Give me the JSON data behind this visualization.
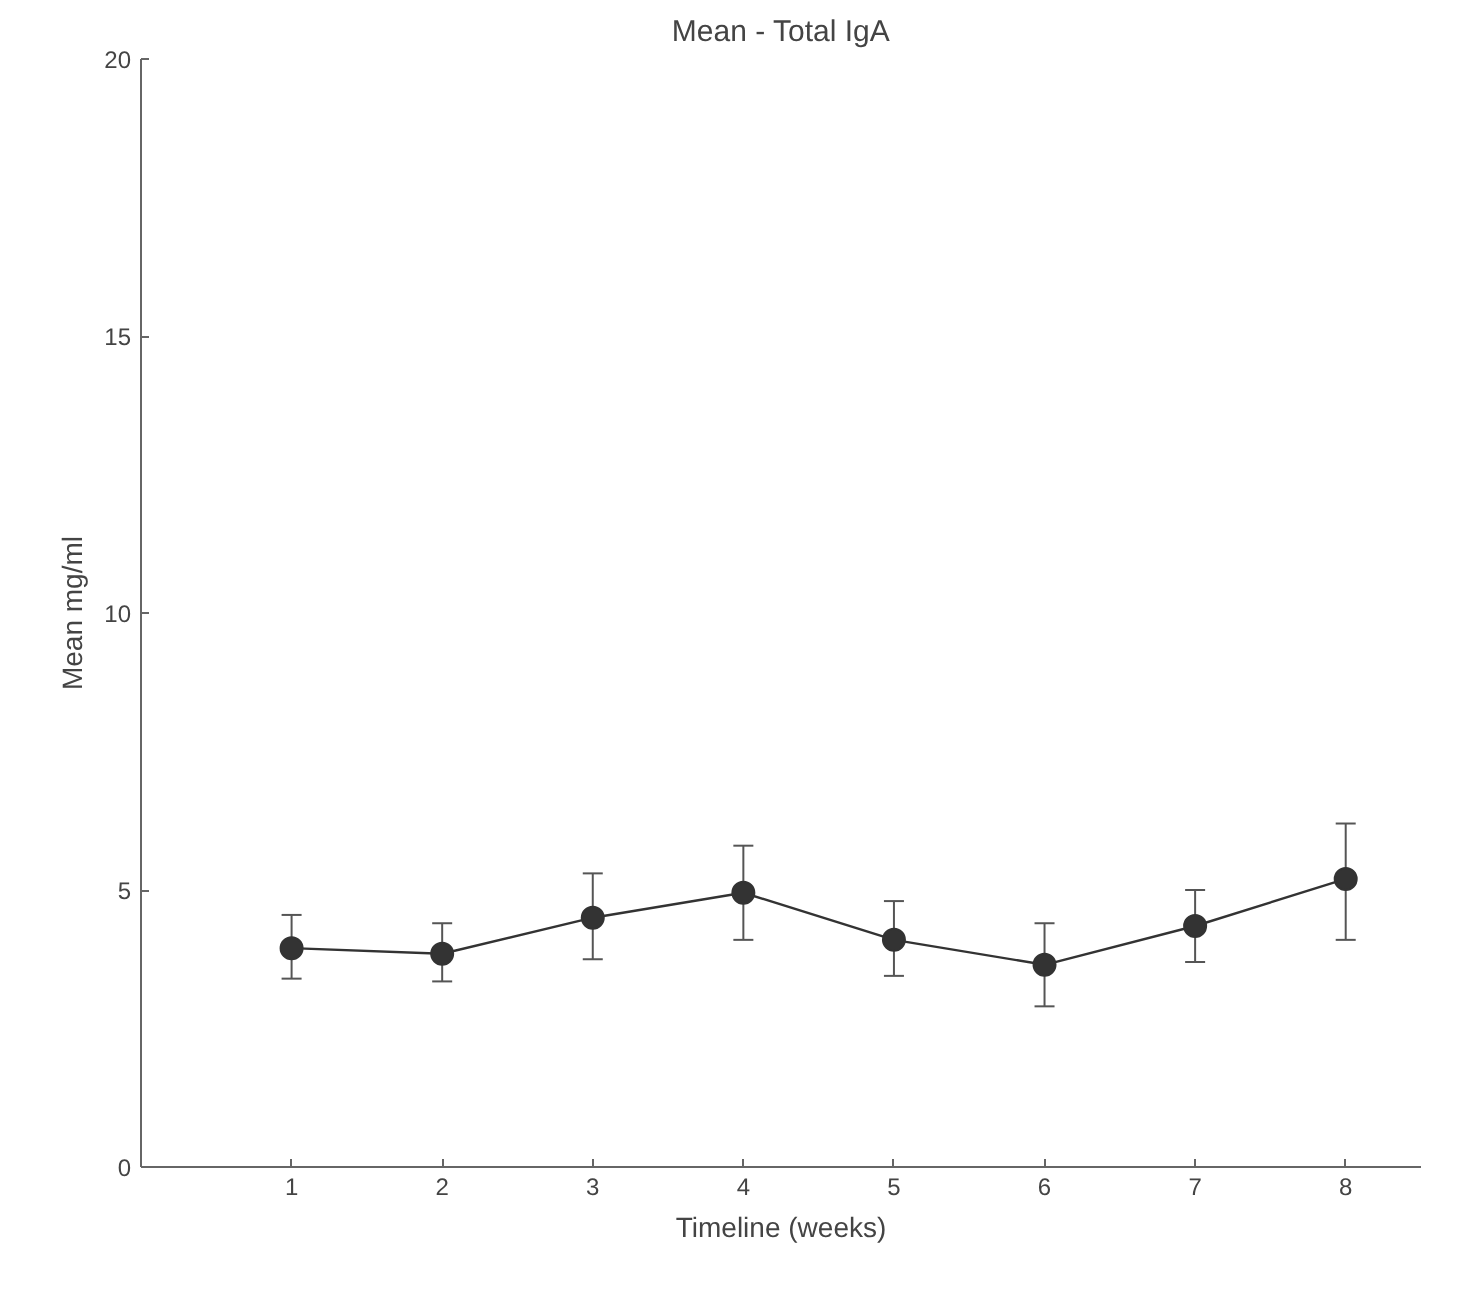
{
  "chart_data": {
    "type": "line",
    "title": "Mean - Total IgA",
    "xlabel": "Timeline (weeks)",
    "ylabel": "Mean mg/ml",
    "x": [
      1,
      2,
      3,
      4,
      5,
      6,
      7,
      8
    ],
    "series": [
      {
        "color": "#333333",
        "values": [
          3.95,
          3.85,
          4.5,
          4.95,
          4.1,
          3.65,
          4.35,
          5.2
        ],
        "errors": [
          [
            3.4,
            4.55
          ],
          [
            3.35,
            4.4
          ],
          [
            3.75,
            5.3
          ],
          [
            4.1,
            5.8
          ],
          [
            3.45,
            4.8
          ],
          [
            2.9,
            4.4
          ],
          [
            3.7,
            5.0
          ],
          [
            4.1,
            6.2
          ]
        ]
      }
    ],
    "xlim": [
      0,
      8.5
    ],
    "xticks": [
      1,
      2,
      3,
      4,
      5,
      6,
      7,
      8
    ],
    "ylim": [
      0,
      20
    ],
    "yticks": [
      0,
      5,
      10,
      15,
      20
    ],
    "grid": false,
    "marker": "circle",
    "line_style": "solid"
  }
}
